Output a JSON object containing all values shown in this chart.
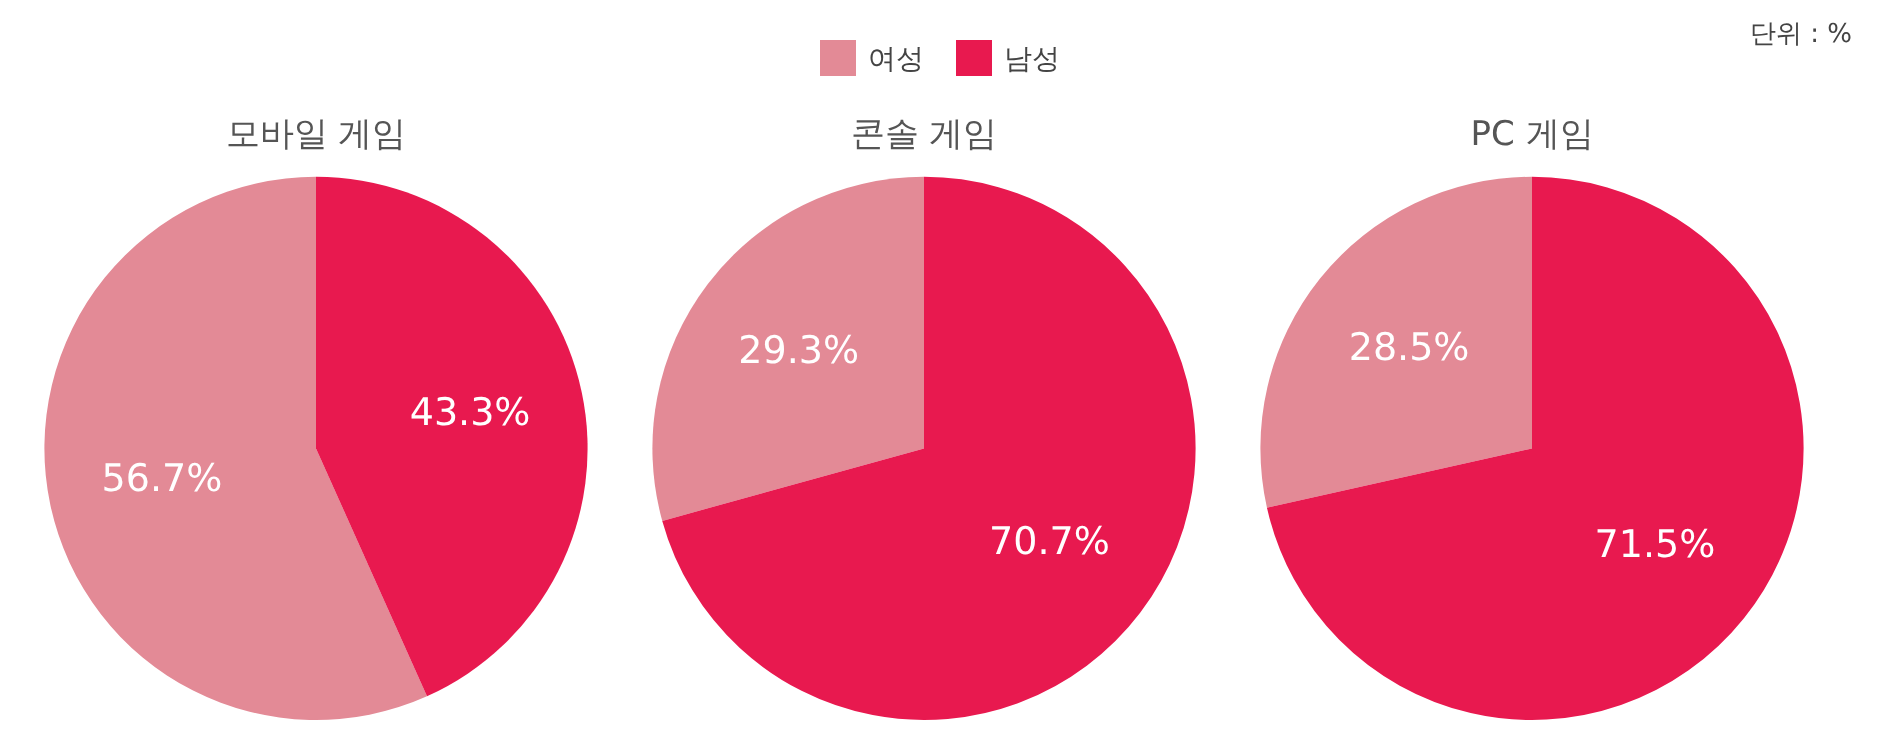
{
  "chart_data": [
    {
      "type": "pie",
      "title": "모바일 게임",
      "categories": [
        "여성",
        "남성"
      ],
      "values": [
        56.7,
        43.3
      ],
      "colors": [
        "#e38a96",
        "#e8194f"
      ],
      "data_labels": true,
      "legend": "top",
      "value_labels": [
        "56.7%",
        "43.3%"
      ]
    },
    {
      "type": "pie",
      "title": "콘솔 게임",
      "categories": [
        null,
        null
      ],
      "values": [
        29.3,
        70.7
      ],
      "colors": [
        "#e38a96",
        "#e8194f"
      ],
      "data_labels": true,
      "value_labels": [
        "29.3%",
        "70.7%"
      ]
    },
    {
      "type": "pie",
      "title": "PC 게임",
      "categories": [
        null,
        null
      ],
      "values": [
        28.5,
        71.5
      ],
      "colors": [
        "#e38a96",
        "#e8194f"
      ],
      "data_labels": true,
      "value_labels": [
        "28.5%",
        "71.5%"
      ],
      "annotations": [
        "단위 : %"
      ]
    }
  ]
}
